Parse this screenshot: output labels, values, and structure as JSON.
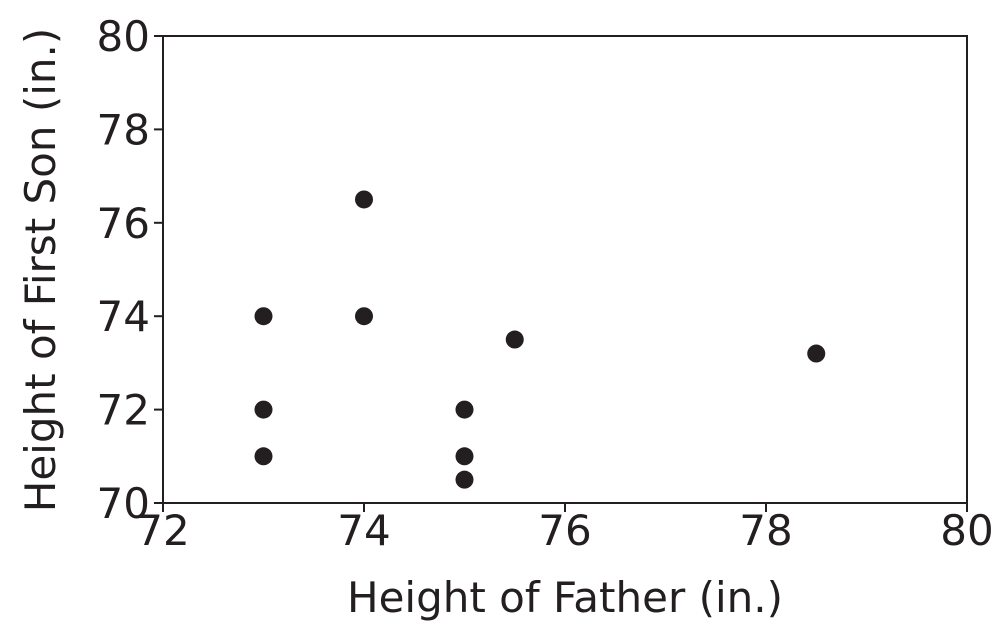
{
  "chart_data": {
    "type": "scatter",
    "title": "",
    "xlabel": "Height of Father (in.)",
    "ylabel": "Height of First Son (in.)",
    "xlim": [
      72,
      80
    ],
    "ylim": [
      70,
      80
    ],
    "xticks": [
      72,
      74,
      76,
      78,
      80
    ],
    "yticks": [
      70,
      72,
      74,
      76,
      78,
      80
    ],
    "grid": false,
    "marker_color": "#231f20",
    "points": [
      {
        "x": 73,
        "y": 74
      },
      {
        "x": 73,
        "y": 72
      },
      {
        "x": 73,
        "y": 71
      },
      {
        "x": 74,
        "y": 76.5
      },
      {
        "x": 74,
        "y": 74
      },
      {
        "x": 75,
        "y": 72
      },
      {
        "x": 75,
        "y": 71
      },
      {
        "x": 75,
        "y": 70.5
      },
      {
        "x": 75.5,
        "y": 73.5
      },
      {
        "x": 78.5,
        "y": 73.2
      }
    ]
  }
}
